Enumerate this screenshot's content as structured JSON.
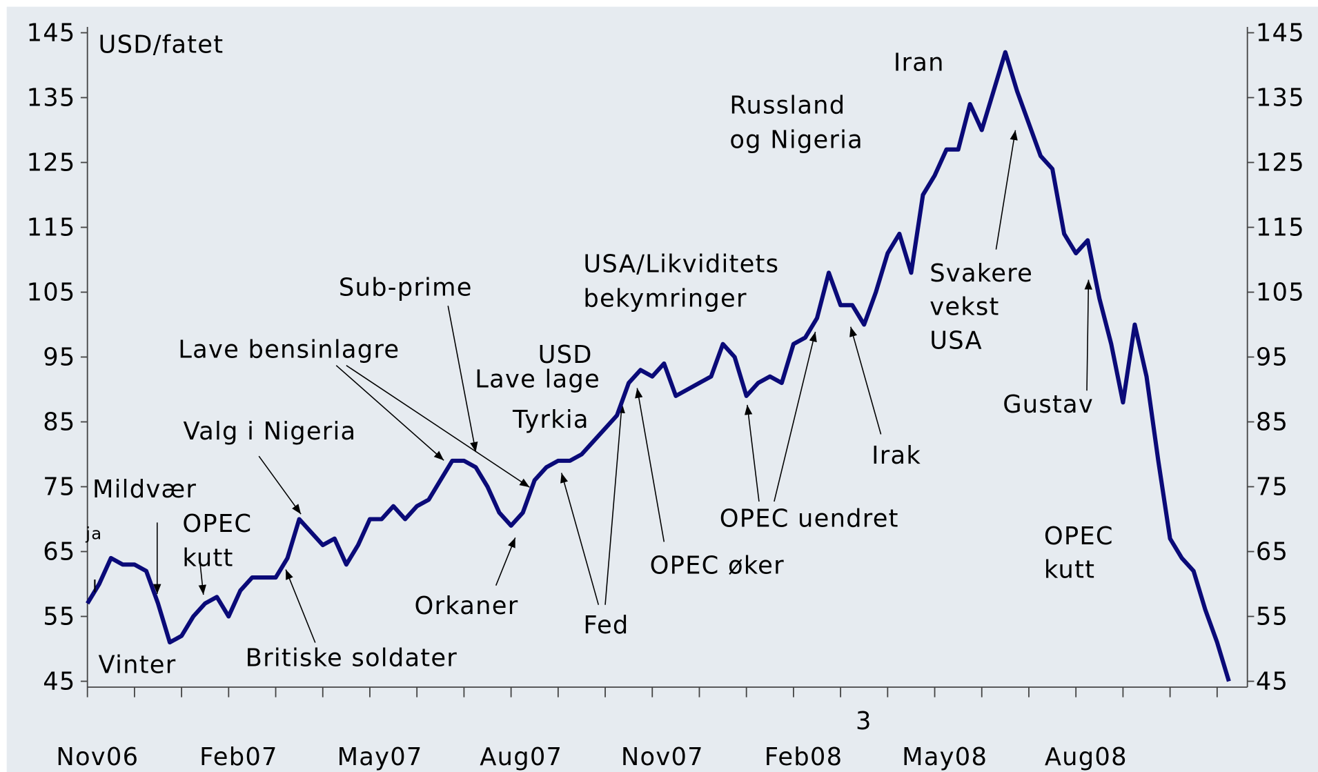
{
  "chart_data": {
    "type": "line",
    "y_label": "USD/fatet",
    "categories": [
      "Nov06",
      null,
      null,
      null,
      null,
      null,
      null,
      null,
      null,
      null,
      null,
      null,
      "Feb07",
      null,
      null,
      null,
      null,
      null,
      null,
      null,
      null,
      null,
      null,
      null,
      "May07",
      null,
      null,
      null,
      null,
      null,
      null,
      null,
      null,
      null,
      null,
      null,
      "Aug07",
      null,
      null,
      null,
      null,
      null,
      null,
      null,
      null,
      null,
      null,
      null,
      "Nov07",
      null,
      null,
      null,
      null,
      null,
      null,
      null,
      null,
      null,
      null,
      null,
      "Feb08",
      null,
      null,
      null,
      null,
      null,
      null,
      null,
      null,
      null,
      null,
      null,
      "May08",
      null,
      null,
      null,
      null,
      null,
      null,
      null,
      null,
      null,
      null,
      null,
      "Aug08",
      null,
      null,
      null,
      null,
      null,
      null,
      null,
      null,
      null,
      null,
      null,
      null,
      null
    ],
    "series": [
      {
        "color": "#0a0a78",
        "values": [
          57,
          60,
          64,
          63,
          63,
          62,
          57,
          51,
          52,
          55,
          57,
          58,
          55,
          59,
          61,
          61,
          61,
          64,
          70,
          68,
          66,
          67,
          63,
          66,
          70,
          70,
          72,
          70,
          72,
          73,
          76,
          79,
          79,
          78,
          75,
          71,
          69,
          71,
          76,
          78,
          79,
          79,
          80,
          82,
          84,
          86,
          91,
          93,
          92,
          94,
          89,
          90,
          91,
          92,
          97,
          95,
          89,
          91,
          92,
          91,
          97,
          98,
          101,
          108,
          103,
          103,
          100,
          105,
          111,
          114,
          108,
          120,
          123,
          127,
          127,
          134,
          130,
          136,
          142,
          136,
          131,
          126,
          124,
          114,
          111,
          113,
          104,
          97,
          88,
          100,
          92,
          79,
          67,
          64,
          62,
          56,
          51,
          45
        ]
      }
    ],
    "ylim": [
      45,
      145
    ],
    "yticks": [
      45,
      55,
      65,
      75,
      85,
      95,
      105,
      115,
      125,
      135,
      145
    ],
    "annotations": [
      "Iran",
      [
        "Russland",
        "og Nigeria"
      ],
      [
        "USA/Likviditets",
        "bekymringer"
      ],
      "Sub-prime",
      "Lave bensinlagre",
      "USD",
      "Lave lage",
      "Tyrkia",
      "Valg i Nigeria",
      "Mildvær",
      [
        "OPEC",
        "kutt"
      ],
      "ja",
      "l",
      "Vinter",
      "Britiske soldater",
      "Orkaner",
      "Fed",
      "OPEC øker",
      "OPEC uendret",
      "Irak",
      [
        "Svakere",
        "vekst",
        "USA"
      ],
      "Gustav",
      [
        "OPEC",
        "kutt"
      ],
      "3"
    ]
  }
}
